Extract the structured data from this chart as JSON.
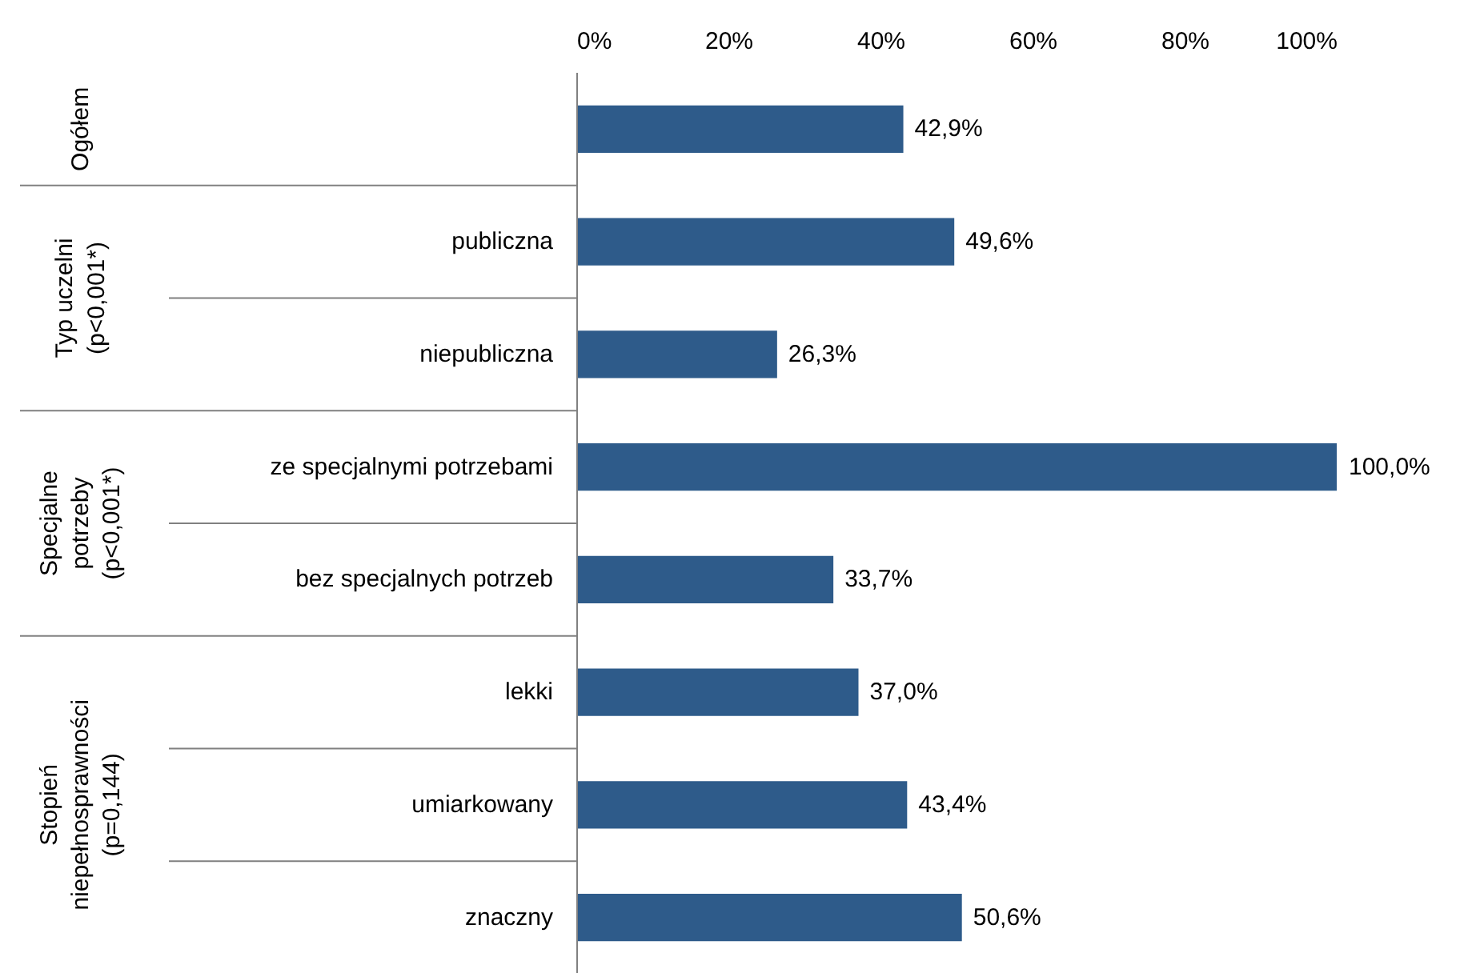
{
  "chart_data": {
    "type": "bar",
    "orientation": "horizontal",
    "categories": [
      null,
      "publiczna",
      "niepubliczna",
      "ze specjalnymi potrzebami",
      "bez specjalnych potrzeb",
      "lekki",
      "umiarkowany",
      "znaczny"
    ],
    "values": [
      42.9,
      49.6,
      26.3,
      100.0,
      33.7,
      37.0,
      43.4,
      50.6
    ],
    "value_labels": [
      "42,9%",
      "49,6%",
      "26,3%",
      "100,0%",
      "33,7%",
      "37,0%",
      "43,4%",
      "50,6%"
    ],
    "color": "#2e5b8a",
    "xlim": [
      0,
      100
    ],
    "xticks": [
      {
        "value": 0,
        "label": "0%"
      },
      {
        "value": 20,
        "label": "20%"
      },
      {
        "value": 40,
        "label": "40%"
      },
      {
        "value": 60,
        "label": "60%"
      },
      {
        "value": 80,
        "label": "80%"
      },
      {
        "value": 100,
        "label": "100%"
      }
    ],
    "annotations": [
      "Ogółem",
      "Typ uczelni\n(p<0,001*)",
      "Specjalne\npotrzeby\n(p<0,001*)",
      "Stopień\nniepełnosprawności\n(p=0,144)"
    ],
    "grid": false
  }
}
